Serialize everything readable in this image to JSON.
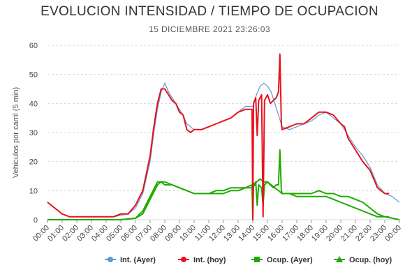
{
  "chart_data": {
    "type": "line",
    "title": "EVOLUCION INTENSIDAD / TIEMPO DE OCUPACION",
    "subtitle": "15 DICIEMBRE 2021 23:26:03",
    "ylabel": "Vehiculos por carril (5 min)",
    "ylim": [
      0,
      60
    ],
    "yticks": [
      0,
      10,
      20,
      30,
      40,
      50,
      60
    ],
    "xlim": [
      0,
      24
    ],
    "xticks": [
      "00:00",
      "01:00",
      "02:00",
      "03:00",
      "04:00",
      "05:00",
      "06:00",
      "07:00",
      "08:00",
      "09:00",
      "10:00",
      "11:00",
      "12:00",
      "13:00",
      "14:00",
      "15:00",
      "16:00",
      "17:00",
      "18:00",
      "19:00",
      "20:00",
      "21:00",
      "22:00",
      "23:00",
      "00:00"
    ],
    "grid": "horizontal-dashed",
    "legend_position": "bottom-right",
    "series": [
      {
        "name": "Int. (Ayer)",
        "color": "#5b9bd5",
        "marker": "circle",
        "points": [
          [
            0,
            6
          ],
          [
            0.25,
            5
          ],
          [
            0.5,
            4
          ],
          [
            0.75,
            3
          ],
          [
            1,
            2
          ],
          [
            1.5,
            1
          ],
          [
            2,
            1
          ],
          [
            3,
            1
          ],
          [
            4,
            1
          ],
          [
            4.5,
            1
          ],
          [
            5,
            1.5
          ],
          [
            5.5,
            2
          ],
          [
            6,
            4
          ],
          [
            6.5,
            9
          ],
          [
            7,
            20
          ],
          [
            7.25,
            30
          ],
          [
            7.5,
            38
          ],
          [
            7.75,
            44
          ],
          [
            8,
            47
          ],
          [
            8.25,
            44
          ],
          [
            8.5,
            42
          ],
          [
            8.75,
            40
          ],
          [
            9,
            38
          ],
          [
            9.25,
            36
          ],
          [
            9.5,
            33
          ],
          [
            9.75,
            32
          ],
          [
            10,
            31
          ],
          [
            10.5,
            31
          ],
          [
            11,
            32
          ],
          [
            11.5,
            33
          ],
          [
            12,
            34
          ],
          [
            12.5,
            35
          ],
          [
            13,
            37
          ],
          [
            13.5,
            39
          ],
          [
            14,
            39
          ],
          [
            14.25,
            43
          ],
          [
            14.5,
            46
          ],
          [
            14.75,
            47
          ],
          [
            15,
            46
          ],
          [
            15.25,
            44
          ],
          [
            15.5,
            40
          ],
          [
            15.75,
            36
          ],
          [
            16,
            32
          ],
          [
            16.5,
            31
          ],
          [
            17,
            32
          ],
          [
            17.5,
            33
          ],
          [
            18,
            34
          ],
          [
            18.5,
            36
          ],
          [
            19,
            37
          ],
          [
            19.5,
            35
          ],
          [
            20,
            33
          ],
          [
            20.25,
            31
          ],
          [
            20.5,
            29
          ],
          [
            21,
            25
          ],
          [
            21.5,
            22
          ],
          [
            22,
            18
          ],
          [
            22.5,
            12
          ],
          [
            23,
            9
          ],
          [
            23.5,
            8
          ],
          [
            24,
            6
          ]
        ]
      },
      {
        "name": "Int. (hoy)",
        "color": "#e8121c",
        "marker": "circle",
        "points": [
          [
            0,
            6
          ],
          [
            0.25,
            5
          ],
          [
            0.5,
            4
          ],
          [
            0.75,
            3
          ],
          [
            1,
            2
          ],
          [
            1.5,
            1
          ],
          [
            2,
            1
          ],
          [
            3,
            1
          ],
          [
            4,
            1
          ],
          [
            4.5,
            1
          ],
          [
            5,
            2
          ],
          [
            5.5,
            2
          ],
          [
            6,
            5
          ],
          [
            6.5,
            10
          ],
          [
            7,
            22
          ],
          [
            7.25,
            32
          ],
          [
            7.5,
            40
          ],
          [
            7.75,
            45
          ],
          [
            8,
            45
          ],
          [
            8.25,
            43
          ],
          [
            8.5,
            41
          ],
          [
            8.75,
            40
          ],
          [
            9,
            37
          ],
          [
            9.25,
            36
          ],
          [
            9.5,
            31
          ],
          [
            9.75,
            30
          ],
          [
            10,
            31
          ],
          [
            10.5,
            31
          ],
          [
            11,
            32
          ],
          [
            11.5,
            33
          ],
          [
            12,
            34
          ],
          [
            12.5,
            35
          ],
          [
            13,
            37
          ],
          [
            13.5,
            38
          ],
          [
            13.95,
            38
          ],
          [
            14,
            0
          ],
          [
            14.05,
            40
          ],
          [
            14.2,
            42
          ],
          [
            14.3,
            29
          ],
          [
            14.4,
            41
          ],
          [
            14.6,
            43
          ],
          [
            14.7,
            1
          ],
          [
            14.8,
            41
          ],
          [
            15,
            43
          ],
          [
            15.2,
            40
          ],
          [
            15.4,
            41
          ],
          [
            15.6,
            42
          ],
          [
            15.75,
            44
          ],
          [
            15.85,
            57
          ],
          [
            15.95,
            33
          ],
          [
            16,
            31
          ],
          [
            16.5,
            32
          ],
          [
            17,
            33
          ],
          [
            17.5,
            33
          ],
          [
            18,
            35
          ],
          [
            18.5,
            37
          ],
          [
            19,
            37
          ],
          [
            19.5,
            36
          ],
          [
            20,
            33
          ],
          [
            20.25,
            32
          ],
          [
            20.5,
            28
          ],
          [
            21,
            24
          ],
          [
            21.5,
            20
          ],
          [
            22,
            17
          ],
          [
            22.5,
            11
          ],
          [
            23,
            9
          ],
          [
            23.3,
            9
          ]
        ]
      },
      {
        "name": "Ocup. (Ayer)",
        "color": "#1faa00",
        "marker": "square",
        "points": [
          [
            0,
            0
          ],
          [
            1,
            0
          ],
          [
            2,
            0
          ],
          [
            3,
            0
          ],
          [
            4,
            0
          ],
          [
            5,
            0
          ],
          [
            6,
            0.5
          ],
          [
            6.5,
            2
          ],
          [
            7,
            7
          ],
          [
            7.5,
            12
          ],
          [
            7.75,
            13
          ],
          [
            8,
            13
          ],
          [
            8.5,
            12
          ],
          [
            9,
            11
          ],
          [
            9.5,
            10
          ],
          [
            10,
            9
          ],
          [
            10.5,
            9
          ],
          [
            11,
            9
          ],
          [
            11.5,
            9
          ],
          [
            12,
            9
          ],
          [
            12.5,
            10
          ],
          [
            13,
            10
          ],
          [
            13.5,
            11
          ],
          [
            14,
            11
          ],
          [
            14.25,
            13
          ],
          [
            14.5,
            14
          ],
          [
            14.75,
            13
          ],
          [
            15,
            13
          ],
          [
            15.25,
            12
          ],
          [
            15.5,
            11
          ],
          [
            15.75,
            10
          ],
          [
            16,
            9
          ],
          [
            16.5,
            9
          ],
          [
            17,
            8
          ],
          [
            17.5,
            8
          ],
          [
            18,
            8
          ],
          [
            18.5,
            8
          ],
          [
            19,
            8
          ],
          [
            19.5,
            7
          ],
          [
            20,
            6
          ],
          [
            20.5,
            5
          ],
          [
            21,
            4
          ],
          [
            21.5,
            3
          ],
          [
            22,
            2
          ],
          [
            22.5,
            1
          ],
          [
            23,
            1
          ],
          [
            23.5,
            0.5
          ],
          [
            24,
            0
          ]
        ]
      },
      {
        "name": "Ocup. (hoy)",
        "color": "#1faa00",
        "marker": "triangle",
        "points": [
          [
            0,
            0
          ],
          [
            1,
            0
          ],
          [
            2,
            0
          ],
          [
            3,
            0
          ],
          [
            4,
            0
          ],
          [
            5,
            0
          ],
          [
            6,
            0.5
          ],
          [
            6.5,
            3
          ],
          [
            7,
            8
          ],
          [
            7.5,
            13
          ],
          [
            7.75,
            13
          ],
          [
            8,
            12
          ],
          [
            8.5,
            12
          ],
          [
            9,
            11
          ],
          [
            9.5,
            10
          ],
          [
            10,
            9
          ],
          [
            10.5,
            9
          ],
          [
            11,
            9
          ],
          [
            11.5,
            10
          ],
          [
            12,
            10
          ],
          [
            12.5,
            11
          ],
          [
            13,
            11
          ],
          [
            13.5,
            11
          ],
          [
            13.95,
            12
          ],
          [
            14,
            0
          ],
          [
            14.05,
            12
          ],
          [
            14.2,
            13
          ],
          [
            14.3,
            5
          ],
          [
            14.4,
            12
          ],
          [
            14.6,
            11
          ],
          [
            14.7,
            5
          ],
          [
            14.8,
            12
          ],
          [
            15,
            13
          ],
          [
            15.2,
            12
          ],
          [
            15.4,
            11
          ],
          [
            15.6,
            12
          ],
          [
            15.75,
            12
          ],
          [
            15.85,
            24
          ],
          [
            15.95,
            10
          ],
          [
            16,
            9
          ],
          [
            16.5,
            9
          ],
          [
            17,
            9
          ],
          [
            17.5,
            9
          ],
          [
            18,
            9
          ],
          [
            18.5,
            10
          ],
          [
            19,
            9
          ],
          [
            19.5,
            9
          ],
          [
            20,
            8
          ],
          [
            20.5,
            8
          ],
          [
            21,
            7
          ],
          [
            21.5,
            6
          ],
          [
            22,
            4
          ],
          [
            22.5,
            2
          ],
          [
            23,
            1
          ],
          [
            23.3,
            1
          ]
        ]
      }
    ]
  }
}
